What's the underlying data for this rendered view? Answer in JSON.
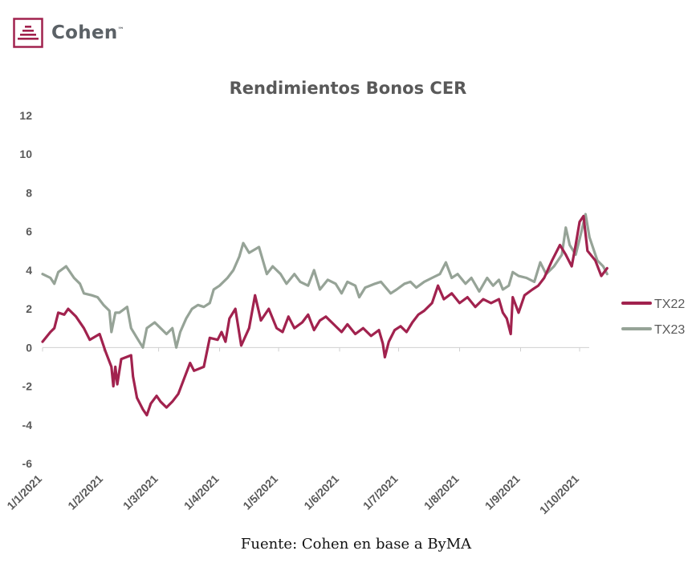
{
  "brand": {
    "name": "Cohen",
    "trademark": "™",
    "color": "#a1224e"
  },
  "source_note": "Fuente: Cohen en base a ByMA",
  "chart_data": {
    "type": "line",
    "title": "Rendimientos Bonos CER",
    "xlabel": "",
    "ylabel": "",
    "x_ticks": [
      "1/1/2021",
      "1/2/2021",
      "1/3/2021",
      "1/4/2021",
      "1/5/2021",
      "1/6/2021",
      "1/7/2021",
      "1/8/2021",
      "1/9/2021",
      "1/10/2021"
    ],
    "ylim": [
      -6,
      12
    ],
    "y_ticks": [
      "12",
      "10",
      "8",
      "6",
      "4",
      "2",
      "0",
      "-2",
      "-4",
      "-6"
    ],
    "grid": false,
    "legend_position": "right",
    "series": [
      {
        "name": "TX22",
        "color": "#a1224e",
        "points": [
          [
            "2021-01-01",
            0.3
          ],
          [
            "2021-01-05",
            0.8
          ],
          [
            "2021-01-07",
            1.0
          ],
          [
            "2021-01-09",
            1.8
          ],
          [
            "2021-01-12",
            1.7
          ],
          [
            "2021-01-14",
            2.0
          ],
          [
            "2021-01-18",
            1.6
          ],
          [
            "2021-01-22",
            1.0
          ],
          [
            "2021-01-25",
            0.4
          ],
          [
            "2021-01-30",
            0.7
          ],
          [
            "2021-02-02",
            -0.2
          ],
          [
            "2021-02-05",
            -1.0
          ],
          [
            "2021-02-06",
            -2.0
          ],
          [
            "2021-02-07",
            -1.0
          ],
          [
            "2021-02-08",
            -1.9
          ],
          [
            "2021-02-10",
            -0.6
          ],
          [
            "2021-02-15",
            -0.4
          ],
          [
            "2021-02-16",
            -1.5
          ],
          [
            "2021-02-18",
            -2.6
          ],
          [
            "2021-02-21",
            -3.2
          ],
          [
            "2021-02-23",
            -3.5
          ],
          [
            "2021-02-25",
            -2.9
          ],
          [
            "2021-02-28",
            -2.5
          ],
          [
            "2021-03-02",
            -2.8
          ],
          [
            "2021-03-05",
            -3.1
          ],
          [
            "2021-03-08",
            -2.8
          ],
          [
            "2021-03-11",
            -2.4
          ],
          [
            "2021-03-14",
            -1.6
          ],
          [
            "2021-03-17",
            -0.8
          ],
          [
            "2021-03-19",
            -1.2
          ],
          [
            "2021-03-24",
            -1.0
          ],
          [
            "2021-03-27",
            0.5
          ],
          [
            "2021-03-31",
            0.4
          ],
          [
            "2021-04-02",
            0.8
          ],
          [
            "2021-04-04",
            0.3
          ],
          [
            "2021-04-06",
            1.5
          ],
          [
            "2021-04-09",
            2.0
          ],
          [
            "2021-04-12",
            0.1
          ],
          [
            "2021-04-16",
            1.0
          ],
          [
            "2021-04-19",
            2.7
          ],
          [
            "2021-04-22",
            1.4
          ],
          [
            "2021-04-26",
            2.0
          ],
          [
            "2021-04-30",
            1.0
          ],
          [
            "2021-05-03",
            0.8
          ],
          [
            "2021-05-06",
            1.6
          ],
          [
            "2021-05-09",
            1.0
          ],
          [
            "2021-05-13",
            1.3
          ],
          [
            "2021-05-16",
            1.7
          ],
          [
            "2021-05-19",
            0.9
          ],
          [
            "2021-05-22",
            1.4
          ],
          [
            "2021-05-25",
            1.6
          ],
          [
            "2021-05-29",
            1.2
          ],
          [
            "2021-06-02",
            0.8
          ],
          [
            "2021-06-05",
            1.2
          ],
          [
            "2021-06-09",
            0.7
          ],
          [
            "2021-06-13",
            1.0
          ],
          [
            "2021-06-17",
            0.6
          ],
          [
            "2021-06-21",
            0.9
          ],
          [
            "2021-06-23",
            0.2
          ],
          [
            "2021-06-24",
            -0.5
          ],
          [
            "2021-06-26",
            0.3
          ],
          [
            "2021-06-29",
            0.9
          ],
          [
            "2021-07-02",
            1.1
          ],
          [
            "2021-07-05",
            0.8
          ],
          [
            "2021-07-08",
            1.3
          ],
          [
            "2021-07-11",
            1.7
          ],
          [
            "2021-07-14",
            1.9
          ],
          [
            "2021-07-18",
            2.3
          ],
          [
            "2021-07-21",
            3.2
          ],
          [
            "2021-07-24",
            2.5
          ],
          [
            "2021-07-28",
            2.8
          ],
          [
            "2021-08-01",
            2.3
          ],
          [
            "2021-08-05",
            2.6
          ],
          [
            "2021-08-09",
            2.1
          ],
          [
            "2021-08-13",
            2.5
          ],
          [
            "2021-08-17",
            2.3
          ],
          [
            "2021-08-21",
            2.5
          ],
          [
            "2021-08-23",
            1.8
          ],
          [
            "2021-08-25",
            1.5
          ],
          [
            "2021-08-27",
            0.7
          ],
          [
            "2021-08-28",
            2.6
          ],
          [
            "2021-08-31",
            1.8
          ],
          [
            "2021-09-03",
            2.7
          ],
          [
            "2021-09-07",
            3.0
          ],
          [
            "2021-09-10",
            3.2
          ],
          [
            "2021-09-13",
            3.6
          ],
          [
            "2021-09-17",
            4.5
          ],
          [
            "2021-09-21",
            5.3
          ],
          [
            "2021-09-24",
            4.8
          ],
          [
            "2021-09-27",
            4.2
          ],
          [
            "2021-09-29",
            5.3
          ],
          [
            "2021-10-01",
            6.5
          ],
          [
            "2021-10-03",
            6.8
          ],
          [
            "2021-10-05",
            5.0
          ],
          [
            "2021-10-09",
            4.5
          ],
          [
            "2021-10-12",
            3.7
          ],
          [
            "2021-10-15",
            4.1
          ]
        ]
      },
      {
        "name": "TX23",
        "color": "#96a397",
        "points": [
          [
            "2021-01-01",
            3.8
          ],
          [
            "2021-01-05",
            3.6
          ],
          [
            "2021-01-07",
            3.3
          ],
          [
            "2021-01-09",
            3.9
          ],
          [
            "2021-01-13",
            4.2
          ],
          [
            "2021-01-17",
            3.6
          ],
          [
            "2021-01-20",
            3.3
          ],
          [
            "2021-01-22",
            2.8
          ],
          [
            "2021-01-26",
            2.7
          ],
          [
            "2021-01-29",
            2.6
          ],
          [
            "2021-02-01",
            2.2
          ],
          [
            "2021-02-04",
            1.9
          ],
          [
            "2021-02-05",
            0.8
          ],
          [
            "2021-02-07",
            1.8
          ],
          [
            "2021-02-09",
            1.8
          ],
          [
            "2021-02-13",
            2.1
          ],
          [
            "2021-02-15",
            1.0
          ],
          [
            "2021-02-18",
            0.5
          ],
          [
            "2021-02-21",
            0.0
          ],
          [
            "2021-02-23",
            1.0
          ],
          [
            "2021-02-27",
            1.3
          ],
          [
            "2021-03-02",
            1.0
          ],
          [
            "2021-03-05",
            0.7
          ],
          [
            "2021-03-08",
            1.0
          ],
          [
            "2021-03-10",
            0.0
          ],
          [
            "2021-03-12",
            0.8
          ],
          [
            "2021-03-15",
            1.5
          ],
          [
            "2021-03-18",
            2.0
          ],
          [
            "2021-03-21",
            2.2
          ],
          [
            "2021-03-24",
            2.1
          ],
          [
            "2021-03-27",
            2.3
          ],
          [
            "2021-03-29",
            3.0
          ],
          [
            "2021-04-01",
            3.2
          ],
          [
            "2021-04-05",
            3.6
          ],
          [
            "2021-04-08",
            4.0
          ],
          [
            "2021-04-11",
            4.7
          ],
          [
            "2021-04-13",
            5.4
          ],
          [
            "2021-04-16",
            4.9
          ],
          [
            "2021-04-21",
            5.2
          ],
          [
            "2021-04-25",
            3.8
          ],
          [
            "2021-04-28",
            4.2
          ],
          [
            "2021-05-02",
            3.8
          ],
          [
            "2021-05-05",
            3.3
          ],
          [
            "2021-05-09",
            3.8
          ],
          [
            "2021-05-12",
            3.4
          ],
          [
            "2021-05-16",
            3.2
          ],
          [
            "2021-05-19",
            4.0
          ],
          [
            "2021-05-22",
            3.0
          ],
          [
            "2021-05-26",
            3.5
          ],
          [
            "2021-05-30",
            3.3
          ],
          [
            "2021-06-02",
            2.8
          ],
          [
            "2021-06-05",
            3.4
          ],
          [
            "2021-06-09",
            3.2
          ],
          [
            "2021-06-11",
            2.6
          ],
          [
            "2021-06-14",
            3.1
          ],
          [
            "2021-06-19",
            3.3
          ],
          [
            "2021-06-22",
            3.4
          ],
          [
            "2021-06-27",
            2.8
          ],
          [
            "2021-06-30",
            3.0
          ],
          [
            "2021-07-04",
            3.3
          ],
          [
            "2021-07-07",
            3.4
          ],
          [
            "2021-07-10",
            3.1
          ],
          [
            "2021-07-14",
            3.4
          ],
          [
            "2021-07-18",
            3.6
          ],
          [
            "2021-07-22",
            3.8
          ],
          [
            "2021-07-25",
            4.4
          ],
          [
            "2021-07-28",
            3.6
          ],
          [
            "2021-07-31",
            3.8
          ],
          [
            "2021-08-04",
            3.3
          ],
          [
            "2021-08-07",
            3.6
          ],
          [
            "2021-08-11",
            2.9
          ],
          [
            "2021-08-15",
            3.6
          ],
          [
            "2021-08-18",
            3.2
          ],
          [
            "2021-08-21",
            3.5
          ],
          [
            "2021-08-23",
            3.0
          ],
          [
            "2021-08-26",
            3.2
          ],
          [
            "2021-08-28",
            3.9
          ],
          [
            "2021-08-31",
            3.7
          ],
          [
            "2021-09-04",
            3.6
          ],
          [
            "2021-09-08",
            3.4
          ],
          [
            "2021-09-11",
            4.4
          ],
          [
            "2021-09-14",
            3.8
          ],
          [
            "2021-09-18",
            4.2
          ],
          [
            "2021-09-22",
            4.8
          ],
          [
            "2021-09-24",
            6.2
          ],
          [
            "2021-09-26",
            5.3
          ],
          [
            "2021-09-29",
            4.8
          ],
          [
            "2021-10-01",
            5.6
          ],
          [
            "2021-10-04",
            6.9
          ],
          [
            "2021-10-06",
            5.7
          ],
          [
            "2021-10-10",
            4.5
          ],
          [
            "2021-10-13",
            4.2
          ],
          [
            "2021-10-15",
            3.8
          ]
        ]
      }
    ]
  }
}
